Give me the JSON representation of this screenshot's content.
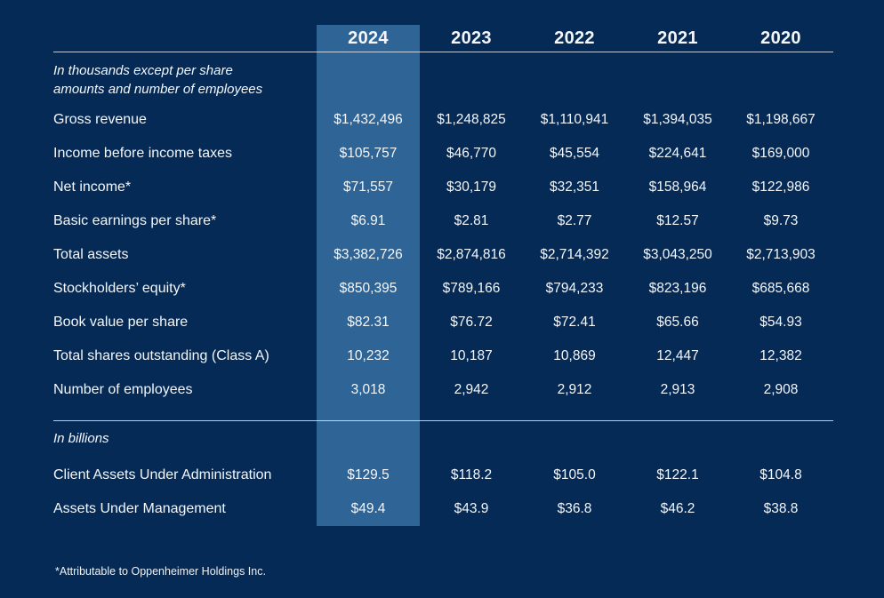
{
  "colors": {
    "background": "#052a55",
    "highlight_band": "#2e6496",
    "text": "#f3f6fa",
    "rule": "#e1e8f2"
  },
  "table": {
    "year_columns": [
      "2024",
      "2023",
      "2022",
      "2021",
      "2020"
    ],
    "highlighted_year": "2024",
    "section1": {
      "note_line1": "In thousands except per share",
      "note_line2": "amounts and number of employees",
      "rows": [
        {
          "label": "Gross revenue",
          "values": [
            "$1,432,496",
            "$1,248,825",
            "$1,110,941",
            "$1,394,035",
            "$1,198,667"
          ]
        },
        {
          "label": "Income before income taxes",
          "values": [
            "$105,757",
            "$46,770",
            "$45,554",
            "$224,641",
            "$169,000"
          ]
        },
        {
          "label": "Net income*",
          "values": [
            "$71,557",
            "$30,179",
            "$32,351",
            "$158,964",
            "$122,986"
          ]
        },
        {
          "label": "Basic earnings per share*",
          "values": [
            "$6.91",
            "$2.81",
            "$2.77",
            "$12.57",
            "$9.73"
          ]
        },
        {
          "label": "Total assets",
          "values": [
            "$3,382,726",
            "$2,874,816",
            "$2,714,392",
            "$3,043,250",
            "$2,713,903"
          ]
        },
        {
          "label": "Stockholders’ equity*",
          "values": [
            "$850,395",
            "$789,166",
            "$794,233",
            "$823,196",
            "$685,668"
          ]
        },
        {
          "label": "Book value per share",
          "values": [
            "$82.31",
            "$76.72",
            "$72.41",
            "$65.66",
            "$54.93"
          ]
        },
        {
          "label": "Total shares outstanding (Class A)",
          "values": [
            "10,232",
            "10,187",
            "10,869",
            "12,447",
            "12,382"
          ]
        },
        {
          "label": "Number of employees",
          "values": [
            "3,018",
            "2,942",
            "2,912",
            "2,913",
            "2,908"
          ]
        }
      ]
    },
    "section2": {
      "note": "In billions",
      "rows": [
        {
          "label": "Client Assets Under Administration",
          "values": [
            "$129.5",
            "$118.2",
            "$105.0",
            "$122.1",
            "$104.8"
          ]
        },
        {
          "label": "Assets Under Management",
          "values": [
            "$49.4",
            "$43.9",
            "$36.8",
            "$46.2",
            "$38.8"
          ]
        }
      ]
    },
    "footnote": "*Attributable to Oppenheimer Holdings Inc."
  }
}
